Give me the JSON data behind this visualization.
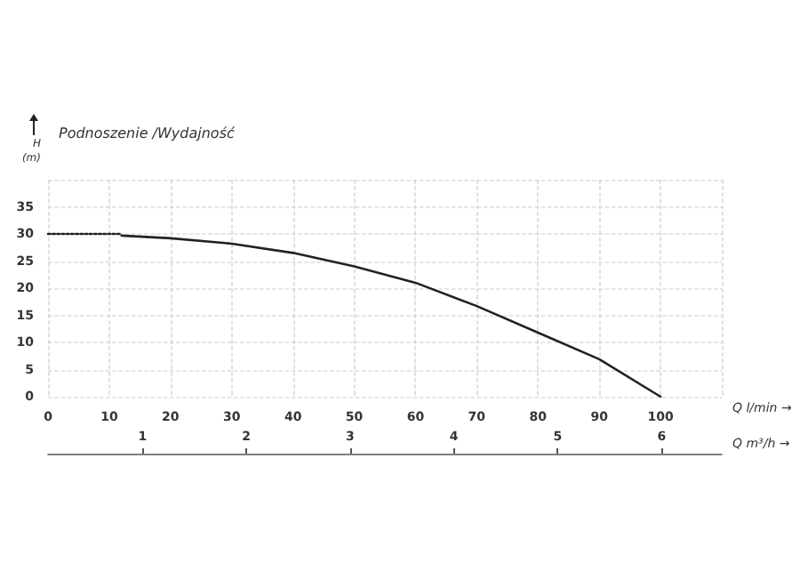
{
  "chart_data": {
    "type": "line",
    "title": "Podnoszenie /Wydajność",
    "ylabel": "H\n(m)",
    "xlabel": "Q l/min →",
    "x2label": "Q m³/h →",
    "xlim": [
      0,
      110
    ],
    "xticks": [
      0,
      10,
      20,
      30,
      40,
      50,
      60,
      70,
      80,
      90,
      100,
      {
        "value": 110,
        "label": null
      }
    ],
    "ylim": [
      0,
      40
    ],
    "yticks": [
      0,
      5,
      10,
      15,
      20,
      25,
      30,
      35,
      {
        "value": 40,
        "label": null
      }
    ],
    "x2lim": [
      0.09,
      6.58
    ],
    "x2ticks": [
      1,
      2,
      3,
      4,
      5,
      6
    ],
    "grid": true,
    "marker": "none",
    "series": [
      {
        "color": "#222222",
        "line_style": "dotted",
        "x": [
          0,
          12
        ],
        "values": [
          30,
          30
        ]
      },
      {
        "color": "#222222",
        "line_style": "solid",
        "x": [
          12,
          20,
          30,
          40,
          50,
          60,
          70,
          80,
          90,
          100
        ],
        "values": [
          29.7,
          29.2,
          28.2,
          26.5,
          24,
          21,
          16.7,
          11.8,
          6.9,
          0
        ]
      }
    ]
  }
}
